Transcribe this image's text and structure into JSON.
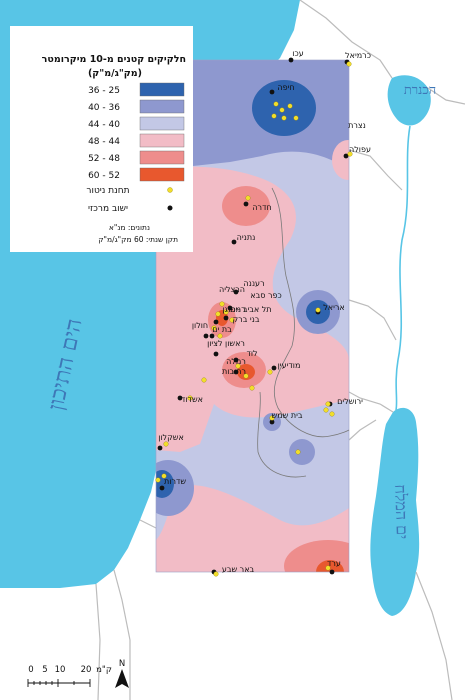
{
  "legend": {
    "title_line1": "חלקיקים קטנים מ-10 מיקרומטר",
    "title_line2": "(מק\"ג/מ\"ק)",
    "classes": [
      {
        "range": "36 - 25",
        "color": "#2e63ae"
      },
      {
        "range": "40 - 36",
        "color": "#8e98cf"
      },
      {
        "range": "44 - 40",
        "color": "#c3c8e6"
      },
      {
        "range": "48 - 44",
        "color": "#f2bcc6"
      },
      {
        "range": "52 - 48",
        "color": "#ee8d8c"
      },
      {
        "range": "60 - 52",
        "color": "#e8582e"
      }
    ],
    "station_label": "תחנת ניטור",
    "station_color": "#f2de2a",
    "settlement_label": "ישוב מרכזי",
    "settlement_color": "#111111",
    "source": "נתונים: מנ\"א",
    "standard": "תקן שנתי: 60 מק\"ג/מ\"ק"
  },
  "water_bodies": {
    "sea": "הים התיכון",
    "kinneret": "הכנרת",
    "dead_sea": "ים המלח"
  },
  "cities": [
    {
      "name": "עכו",
      "name_key": "akko"
    },
    {
      "name": "כרמיאל",
      "name_key": "karmiel"
    },
    {
      "name": "חיפה",
      "name_key": "haifa"
    },
    {
      "name": "נצרת",
      "name_key": "nazareth"
    },
    {
      "name": "עפולה",
      "name_key": "afula"
    },
    {
      "name": "חדרה",
      "name_key": "hadera"
    },
    {
      "name": "נתניה",
      "name_key": "netanya"
    },
    {
      "name": "רעננה",
      "name_key": "raanana"
    },
    {
      "name": "הרצליה",
      "name_key": "herzliya"
    },
    {
      "name": "כפר סבא",
      "name_key": "kfar-saba"
    },
    {
      "name": "רמת גן",
      "name_key": "ramat-gan"
    },
    {
      "name": "תל אביב -יפו",
      "name_key": "tel-aviv"
    },
    {
      "name": "בני ברק",
      "name_key": "bnei-brak"
    },
    {
      "name": "חולון",
      "name_key": "holon"
    },
    {
      "name": "בת ים",
      "name_key": "bat-yam"
    },
    {
      "name": "אריאל",
      "name_key": "ariel"
    },
    {
      "name": "ראשון לציון",
      "name_key": "rishon"
    },
    {
      "name": "לוד",
      "name_key": "lod"
    },
    {
      "name": "רמלה",
      "name_key": "ramla"
    },
    {
      "name": "רחובות",
      "name_key": "rehovot"
    },
    {
      "name": "מודיעין",
      "name_key": "modiin"
    },
    {
      "name": "אשדוד",
      "name_key": "ashdod"
    },
    {
      "name": "ירושלים",
      "name_key": "jerusalem"
    },
    {
      "name": "בית שמש",
      "name_key": "beit-shemesh"
    },
    {
      "name": "אשקלון",
      "name_key": "ashkelon"
    },
    {
      "name": "שדרות",
      "name_key": "sderot"
    },
    {
      "name": "באר שבע",
      "name_key": "beer-sheva"
    },
    {
      "name": "ערד",
      "name_key": "arad"
    }
  ],
  "scale_bar": {
    "ticks": [
      "0",
      "5",
      "10",
      "20"
    ],
    "unit": "ק\"מ",
    "north": "N"
  }
}
